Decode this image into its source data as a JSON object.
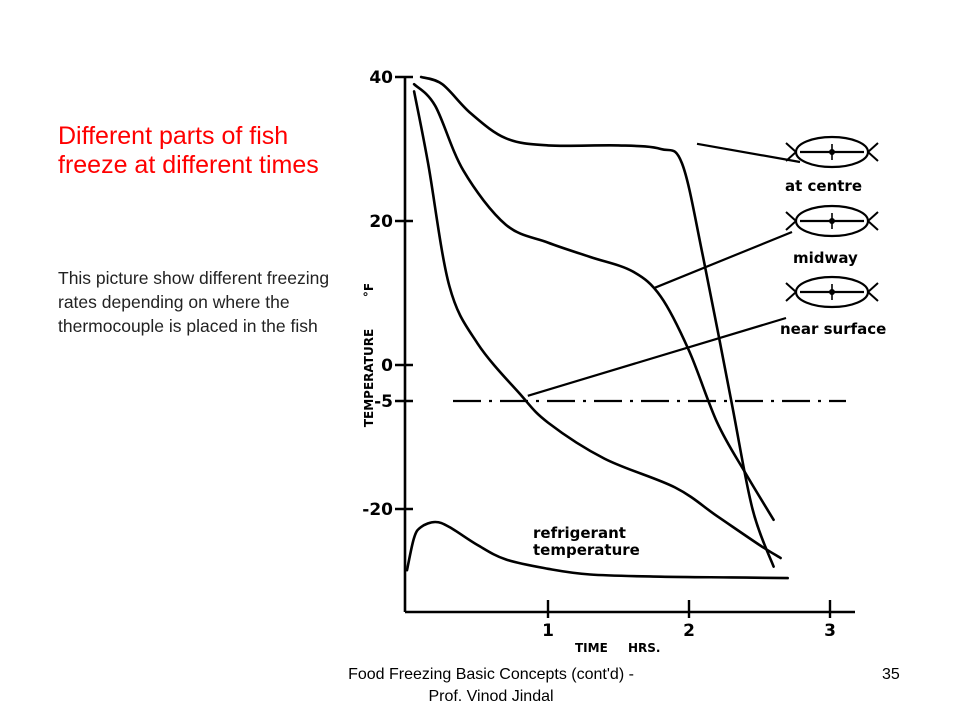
{
  "slide": {
    "title": "Different parts of fish freeze at different times",
    "body": "This picture show different freezing rates depending on where the thermocouple is placed in the fish"
  },
  "footer": {
    "text": "Food Freezing Basic Concepts (cont'd) - Prof. Vinod Jindal",
    "page_number": "35"
  },
  "colors": {
    "title": "#ff0000",
    "chart_ink": "#000000"
  },
  "chart_data": {
    "type": "line",
    "xlabel": "TIME",
    "xunit": "HRS.",
    "ylabel": "TEMPERATURE",
    "yunit": "°F",
    "xlim": [
      0,
      3
    ],
    "ylim": [
      -30,
      40
    ],
    "xticks": [
      {
        "value": 1,
        "label": "1"
      },
      {
        "value": 2,
        "label": "2"
      },
      {
        "value": 3,
        "label": "3"
      }
    ],
    "yticks": [
      {
        "value": 40,
        "label": "40"
      },
      {
        "value": 20,
        "label": "20"
      },
      {
        "value": 0,
        "label": "0"
      },
      {
        "value": -5,
        "label": "-5"
      },
      {
        "value": -20,
        "label": "-20"
      }
    ],
    "reference_line": {
      "y": -5,
      "style": "dashed"
    },
    "series": [
      {
        "name": "at centre",
        "x": [
          0.1,
          0.25,
          0.45,
          0.7,
          1.0,
          1.5,
          1.8,
          1.95,
          2.1,
          2.3,
          2.45,
          2.6
        ],
        "y": [
          40,
          39,
          35,
          31.5,
          30.5,
          30.5,
          30,
          28,
          15,
          -5,
          -20,
          -28
        ]
      },
      {
        "name": "midway",
        "x": [
          0.05,
          0.2,
          0.4,
          0.7,
          1.0,
          1.3,
          1.6,
          1.8,
          2.0,
          2.2,
          2.4,
          2.6
        ],
        "y": [
          39,
          36,
          27,
          19.5,
          17,
          15,
          13,
          9.5,
          2,
          -8,
          -15,
          -21.5
        ]
      },
      {
        "name": "near surface",
        "x": [
          0.05,
          0.15,
          0.3,
          0.5,
          0.8,
          1.0,
          1.4,
          1.9,
          2.2,
          2.5,
          2.65
        ],
        "y": [
          38,
          28,
          11,
          3,
          -4,
          -8,
          -13,
          -17,
          -21,
          -25,
          -26.8
        ]
      },
      {
        "name": "refrigerant temperature",
        "x": [
          0.0,
          0.05,
          0.1,
          0.2,
          0.3,
          0.5,
          0.7,
          1.0,
          1.3,
          1.8,
          2.3,
          2.7
        ],
        "y": [
          -28.5,
          -24,
          -22.5,
          -21.8,
          -22.5,
          -25,
          -27,
          -28.3,
          -29.1,
          -29.4,
          -29.5,
          -29.6
        ]
      }
    ],
    "annotations": [
      {
        "text": "at centre",
        "target": "at centre",
        "tip_x": 2.0,
        "tip_y": 31
      },
      {
        "text": "midway",
        "target": "midway",
        "tip_x": 1.7,
        "tip_y": 11
      },
      {
        "text": "near surface",
        "target": "near surface",
        "tip_x": 0.8,
        "tip_y": -4
      },
      {
        "text": "refrigerant\ntemperature",
        "target": "refrigerant temperature"
      }
    ]
  }
}
